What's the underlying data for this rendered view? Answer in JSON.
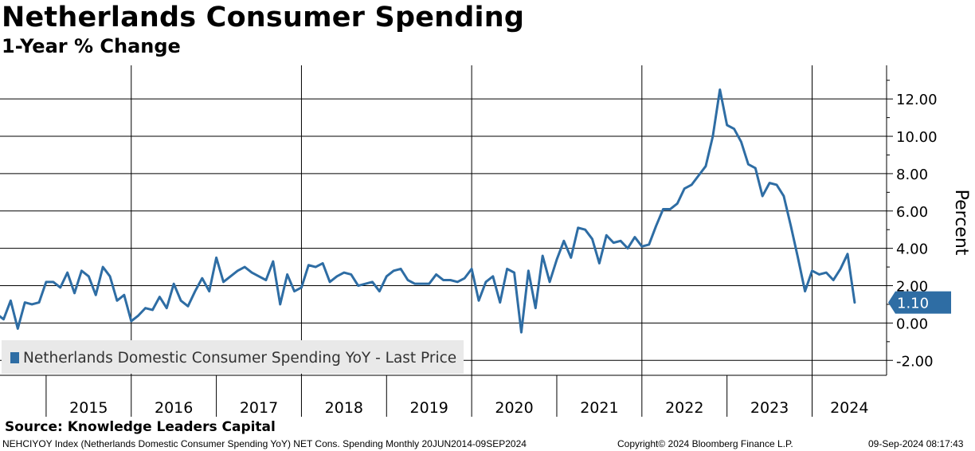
{
  "header": {
    "title": "Netherlands Consumer Spending",
    "subtitle": "1-Year % Change"
  },
  "chart_data": {
    "type": "line",
    "ylabel": "Percent",
    "ylim": [
      -2.8,
      13.8
    ],
    "yticks": [
      -2,
      0,
      2,
      4,
      6,
      8,
      10,
      12
    ],
    "ytick_labels": [
      "-2.00",
      "0.00",
      "2.00",
      "4.00",
      "6.00",
      "8.00",
      "10.00",
      "12.00"
    ],
    "x_start": 2014.458,
    "x_end": 2024.875,
    "year_labels": [
      "2015",
      "2016",
      "2017",
      "2018",
      "2019",
      "2020",
      "2021",
      "2022",
      "2023",
      "2024"
    ],
    "last_value_label": "1.10",
    "line_color": "#2e6da4",
    "legend": "Netherlands Domestic Consumer Spending YoY - Last Price",
    "series": [
      {
        "name": "Netherlands Domestic Consumer Spending YoY - Last Price",
        "start": "2014-06",
        "frequency": "monthly",
        "values": [
          0.5,
          0.2,
          1.2,
          -0.3,
          1.1,
          1.0,
          1.1,
          2.2,
          2.2,
          1.9,
          2.7,
          1.6,
          2.8,
          2.5,
          1.5,
          3.0,
          2.5,
          1.2,
          1.5,
          0.1,
          0.4,
          0.8,
          0.7,
          1.4,
          0.8,
          2.1,
          1.2,
          0.9,
          1.7,
          2.4,
          1.7,
          3.5,
          2.2,
          2.5,
          2.8,
          3.0,
          2.7,
          2.5,
          2.3,
          3.3,
          1.0,
          2.6,
          1.7,
          1.9,
          3.1,
          3.0,
          3.2,
          2.2,
          2.5,
          2.7,
          2.6,
          2.0,
          2.1,
          2.2,
          1.7,
          2.5,
          2.8,
          2.9,
          2.3,
          2.1,
          2.1,
          2.1,
          2.6,
          2.3,
          2.3,
          2.2,
          2.4,
          2.9,
          1.2,
          2.2,
          2.5,
          1.1,
          2.9,
          2.7,
          -0.5,
          2.8,
          0.8,
          3.6,
          2.2,
          3.4,
          4.4,
          3.5,
          5.1,
          5.0,
          4.5,
          3.2,
          4.7,
          4.3,
          4.4,
          4.0,
          4.6,
          4.1,
          4.2,
          5.2,
          6.1,
          6.1,
          6.4,
          7.2,
          7.4,
          7.9,
          8.4,
          10.0,
          12.5,
          10.6,
          10.4,
          9.7,
          8.5,
          8.3,
          6.8,
          7.5,
          7.4,
          6.8,
          5.2,
          3.5,
          1.7,
          2.8,
          2.6,
          2.7,
          2.3,
          2.9,
          3.7,
          1.1
        ]
      }
    ]
  },
  "source": "Source:  Knowledge Leaders Capital",
  "footer": {
    "ticker_info": "NEHCIYOY Index (Netherlands Domestic Consumer Spending YoY) NET Cons. Spending  Monthly 20JUN2014-09SEP2024",
    "copyright": "Copyright© 2024 Bloomberg Finance L.P.",
    "timestamp": "09-Sep-2024 08:17:43"
  }
}
